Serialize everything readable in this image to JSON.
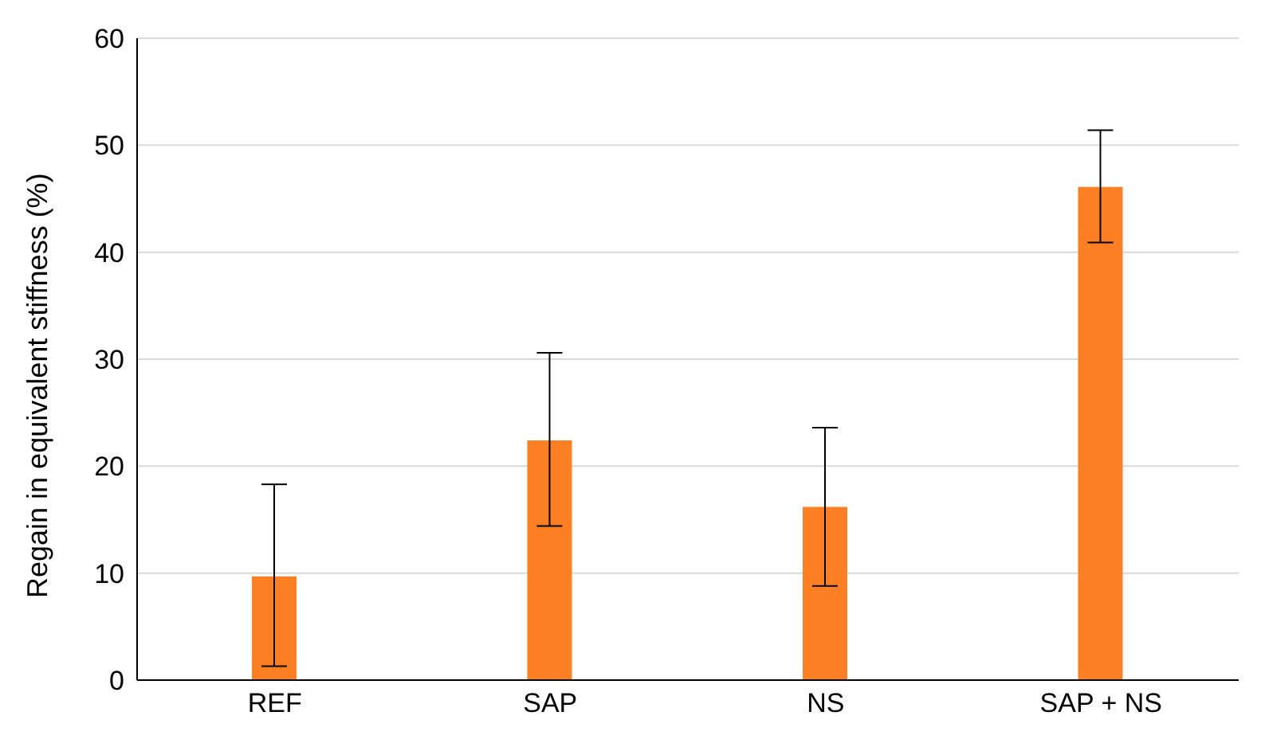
{
  "chart_data": {
    "type": "bar",
    "ylabel": "Regain in equivalent stiffness (%)",
    "categories": [
      "REF",
      "SAP",
      "NS",
      "SAP + NS"
    ],
    "values": [
      9.7,
      22.4,
      16.2,
      46.1
    ],
    "color": "#fd7f23",
    "errors": [
      [
        1.3,
        18.3
      ],
      [
        14.4,
        30.6
      ],
      [
        8.8,
        23.6
      ],
      [
        40.9,
        51.4
      ]
    ],
    "ylim": [
      0,
      60
    ],
    "yticks": [
      0,
      10,
      20,
      30,
      40,
      50,
      60
    ],
    "grid": "y"
  }
}
